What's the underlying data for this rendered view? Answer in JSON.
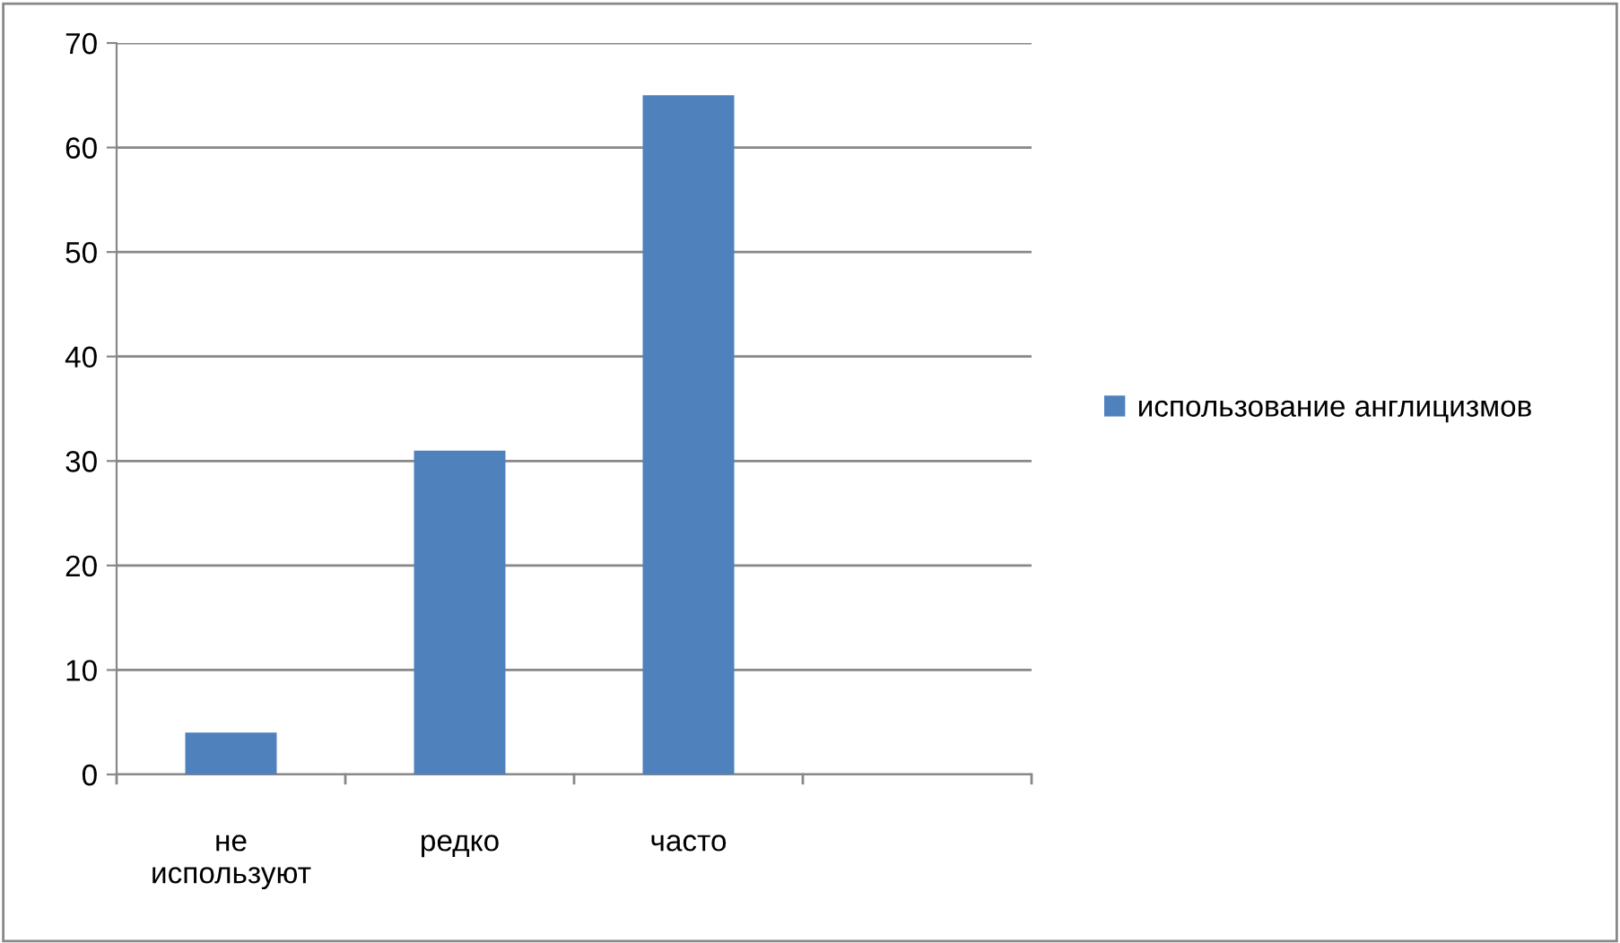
{
  "chart_data": {
    "type": "bar",
    "categories": [
      "не используют",
      "редко",
      "часто",
      null
    ],
    "series": [
      {
        "name": "использование англицизмов",
        "color": "#4f81bd",
        "values": [
          4,
          31,
          65,
          null
        ]
      }
    ],
    "ylim": [
      0,
      70
    ],
    "yticks": [
      0,
      10,
      20,
      30,
      40,
      50,
      60,
      70
    ],
    "grid": "y",
    "legend": "right"
  }
}
